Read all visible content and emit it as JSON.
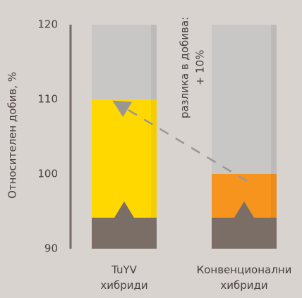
{
  "chart_data": {
    "type": "bar",
    "categories": [
      "TuYV хибриди",
      "Конвенционални хибриди"
    ],
    "values": [
      110,
      100
    ],
    "colors": [
      "#ffd800",
      "#f7941d"
    ],
    "ylabel": "Относителен добив, %",
    "ylim": [
      90,
      120
    ],
    "yticks": [
      90,
      100,
      110,
      120
    ],
    "annotation": [
      "разлика в добива:",
      "+ 10%"
    ]
  }
}
